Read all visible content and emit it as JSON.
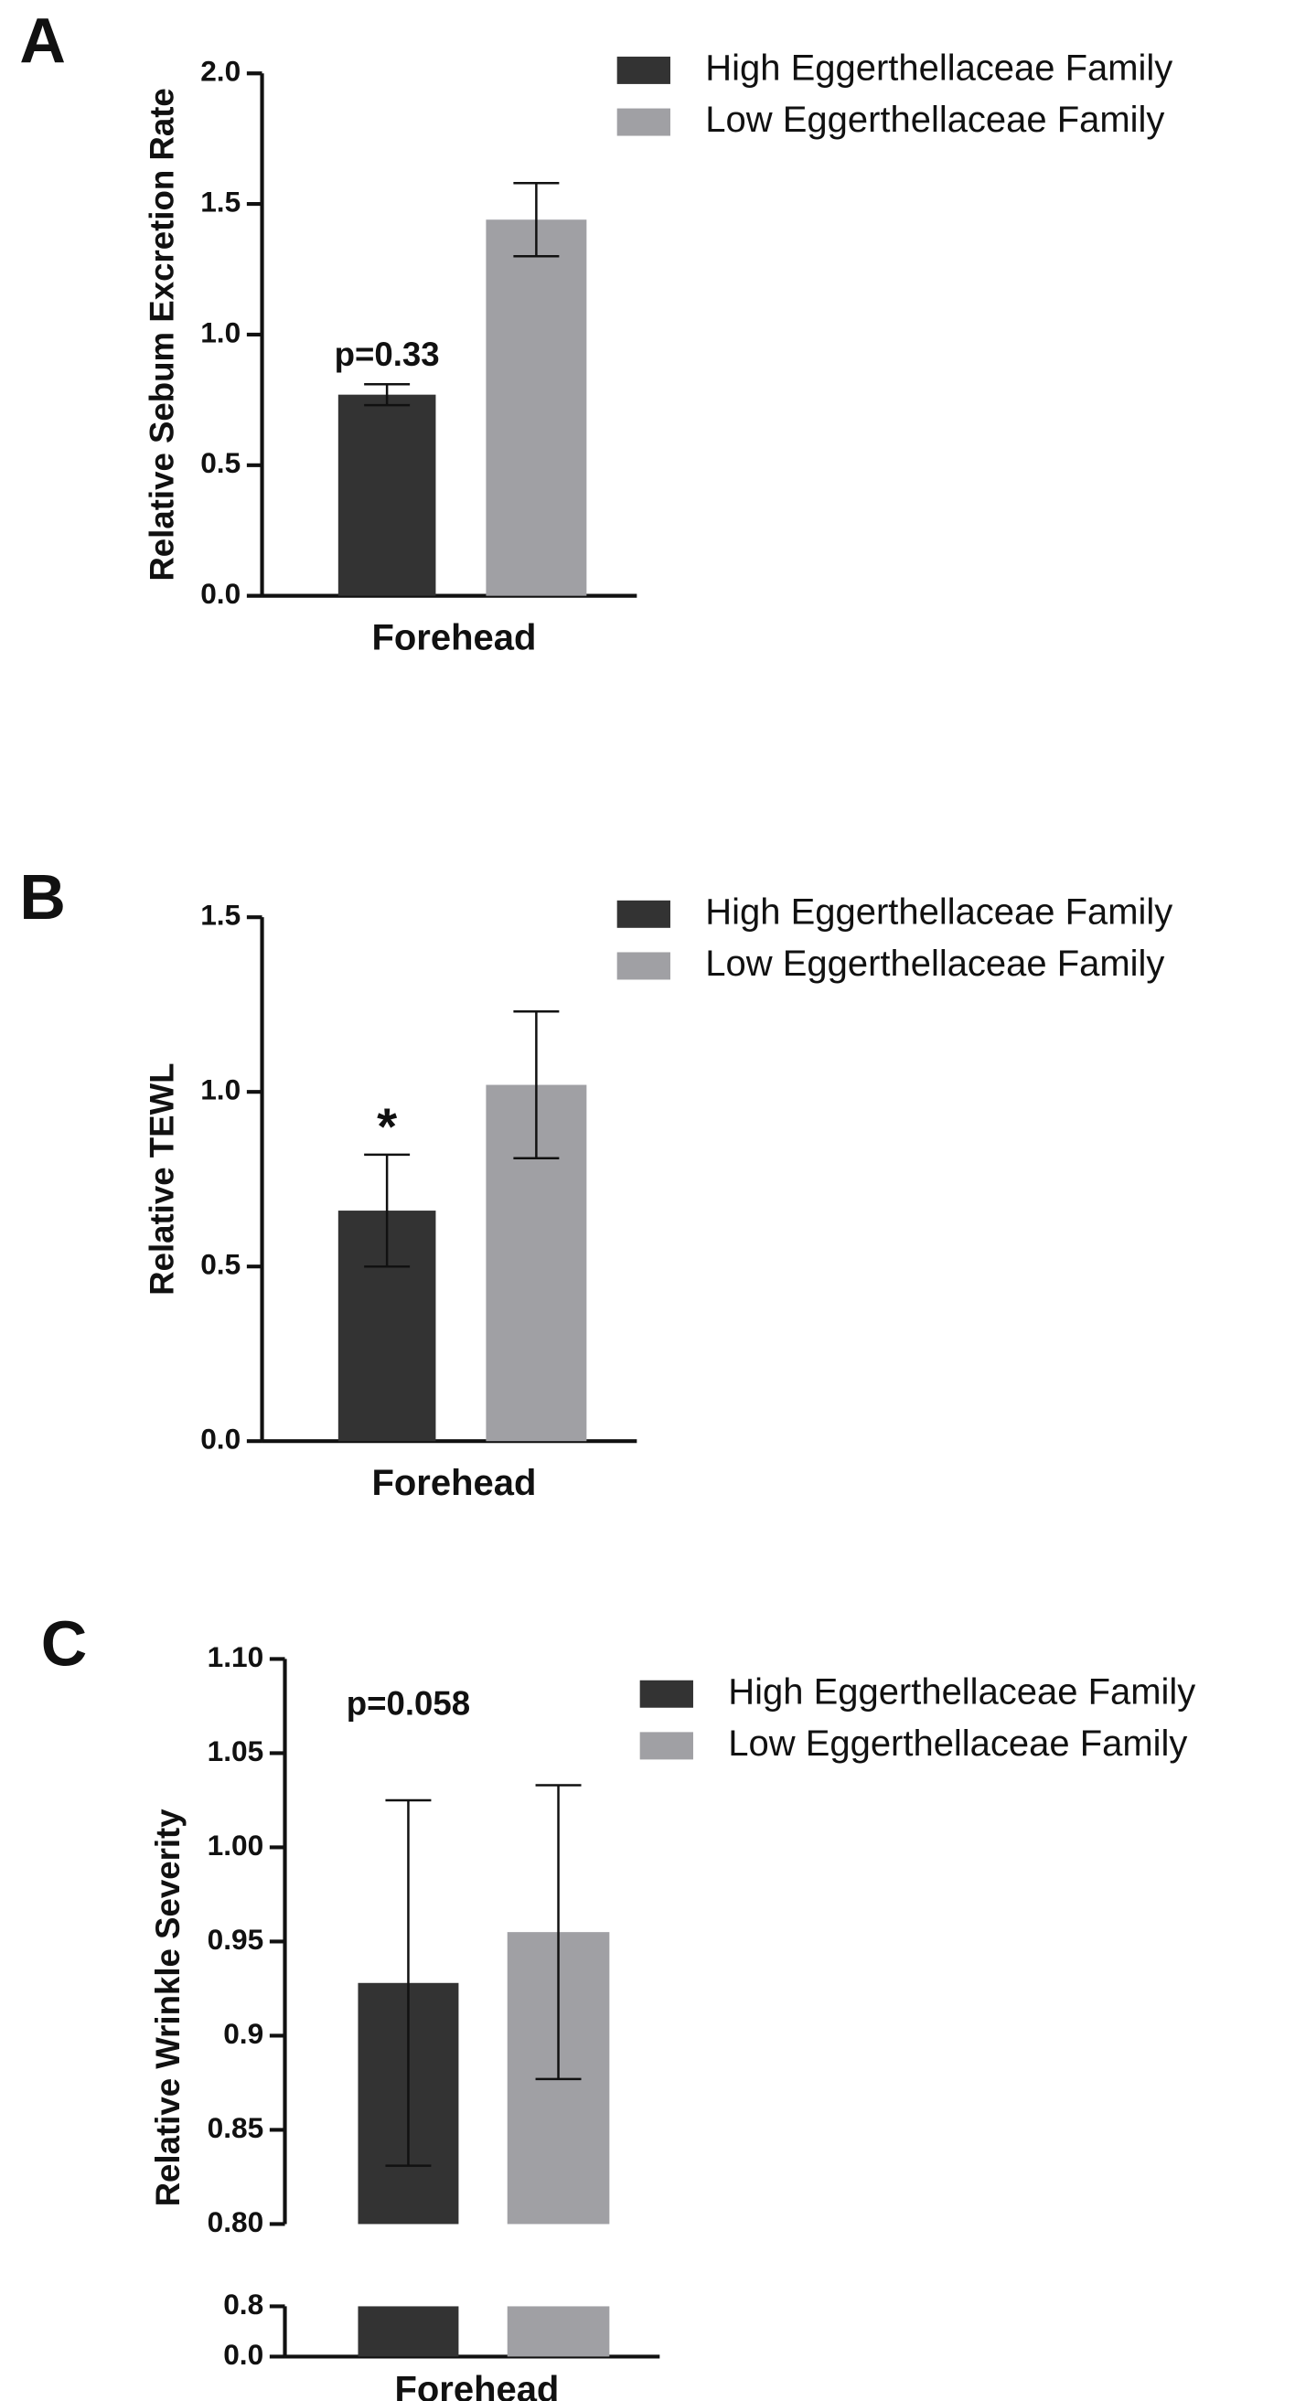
{
  "chart_data": [
    {
      "type": "bar",
      "panel": "A",
      "ylabel": "Relative Sebum Excretion Rate",
      "categories": [
        "Forehead"
      ],
      "series": [
        {
          "name": "High Eggerthellaceae Family",
          "color": "#333333",
          "values": [
            0.77
          ],
          "errors": [
            0.04
          ]
        },
        {
          "name": "Low Eggerthellaceae Family",
          "color": "#a0a0a4",
          "values": [
            1.44
          ],
          "errors": [
            0.14
          ]
        }
      ],
      "annotation": "p=0.33",
      "ylim": [
        0,
        2.0
      ],
      "yticks": [
        {
          "value": 0,
          "label": "0.0"
        },
        {
          "value": 0.5,
          "label": "0.5"
        },
        {
          "value": 1.0,
          "label": "1.0"
        },
        {
          "value": 1.5,
          "label": "1.5"
        },
        {
          "value": 2.0,
          "label": "2.0"
        }
      ]
    },
    {
      "type": "bar",
      "panel": "B",
      "ylabel": "Relative TEWL",
      "categories": [
        "Forehead"
      ],
      "series": [
        {
          "name": "High Eggerthellaceae Family",
          "color": "#333333",
          "values": [
            0.66
          ],
          "errors": [
            0.16
          ]
        },
        {
          "name": "Low Eggerthellaceae Family",
          "color": "#a0a0a4",
          "values": [
            1.02
          ],
          "errors": [
            0.21
          ]
        }
      ],
      "annotation": "*",
      "ylim": [
        0,
        1.5
      ],
      "yticks": [
        {
          "value": 0,
          "label": "0.0"
        },
        {
          "value": 0.5,
          "label": "0.5"
        },
        {
          "value": 1.0,
          "label": "1.0"
        },
        {
          "value": 1.5,
          "label": "1.5"
        }
      ]
    },
    {
      "type": "bar",
      "panel": "C",
      "ylabel": "Relative Wrinkle Severity",
      "categories": [
        "Forehead"
      ],
      "series": [
        {
          "name": "High Eggerthellaceae Family",
          "color": "#333333",
          "values": [
            0.928
          ],
          "errors": [
            0.097
          ]
        },
        {
          "name": "Low Eggerthellaceae Family",
          "color": "#a0a0a4",
          "values": [
            0.955
          ],
          "errors": [
            0.078
          ]
        }
      ],
      "annotation": "p=0.058",
      "ylim": [
        0.8,
        1.1
      ],
      "yticks": [
        {
          "value": 0.8,
          "label": "0.80"
        },
        0.85,
        0.9,
        0.95,
        {
          "value": 1.0,
          "label": "1.00"
        },
        1.05,
        {
          "value": 1.1,
          "label": "1.10"
        }
      ],
      "axis_break": {
        "ylim": [
          0,
          0.8
        ],
        "yticks": [
          {
            "value": 0,
            "label": "0.0"
          },
          0.8
        ]
      }
    }
  ]
}
